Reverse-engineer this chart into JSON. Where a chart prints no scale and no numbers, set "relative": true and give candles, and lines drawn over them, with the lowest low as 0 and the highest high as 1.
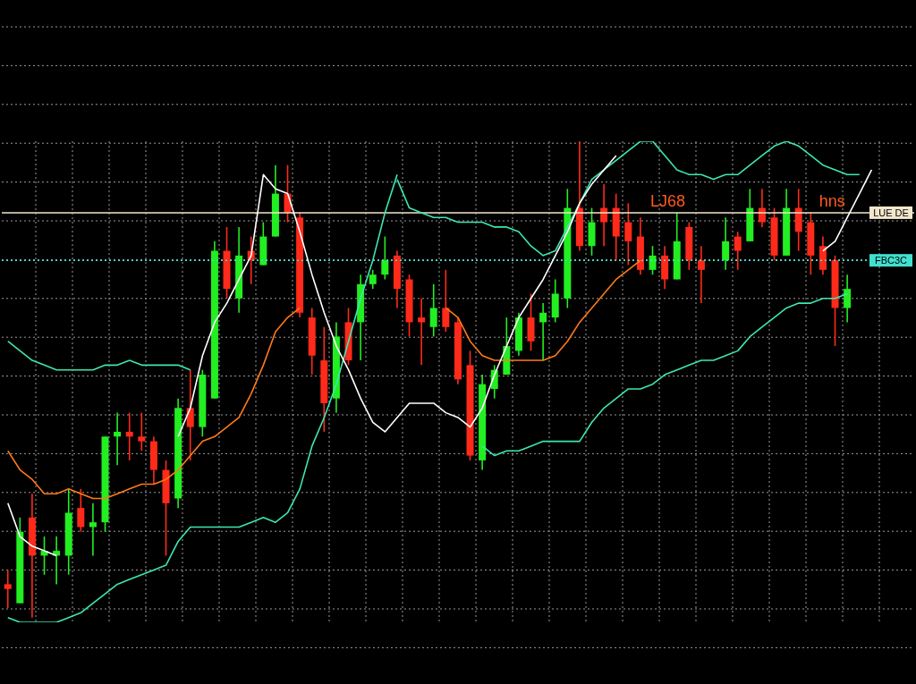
{
  "chart_data": {
    "type": "candlestick",
    "relative": true,
    "grid": true,
    "categories": [
      null,
      null,
      null,
      null,
      null,
      null,
      null,
      null,
      null,
      null,
      null,
      null,
      null,
      null,
      null,
      null,
      null,
      null,
      null,
      null,
      null,
      null,
      null,
      null,
      null,
      null,
      null,
      null,
      null,
      null,
      null,
      null,
      null,
      null,
      null,
      null,
      null,
      null,
      null,
      null,
      null,
      null,
      null,
      null,
      null,
      null,
      null,
      null,
      null,
      null,
      null,
      null,
      null,
      null,
      null,
      null,
      null,
      null,
      null,
      null,
      null,
      null,
      null,
      null,
      null,
      null,
      null,
      null,
      null,
      null,
      null,
      null,
      null,
      null,
      null
    ],
    "colors": [
      "#ff2a1a",
      "#22ee22",
      "#ff2a1a",
      "#22ee22",
      "#22ee22",
      "#22ee22",
      "#ff2a1a",
      "#22ee22",
      "#22ee22",
      "#22ee22",
      "#ff2a1a",
      "#ff2a1a",
      "#ff2a1a",
      "#ff2a1a",
      "#22ee22",
      "#ff2a1a",
      "#22ee22",
      "#22ee22",
      "#ff2a1a",
      "#22ee22",
      "#ff2a1a",
      "#22ee22",
      "#22ee22",
      "#ff2a1a",
      "#ff2a1a",
      "#ff2a1a",
      "#ff2a1a",
      "#22ee22",
      "#ff2a1a",
      "#22ee22",
      "#22ee22",
      "#22ee22",
      "#ff2a1a",
      "#ff2a1a",
      "#ff2a1a",
      "#22ee22",
      "#ff2a1a",
      "#ff2a1a",
      "#ff2a1a",
      "#22ee22",
      "#22ee22",
      "#22ee22",
      "#22ee22",
      "#ff2a1a",
      "#22ee22",
      "#22ee22",
      "#22ee22",
      "#ff2a1a",
      "#22ee22",
      "#ff2a1a",
      "#ff2a1a",
      "#ff2a1a",
      "#ff2a1a",
      "#22ee22",
      "#ff2a1a",
      "#22ee22",
      "#ff2a1a",
      "#ff2a1a",
      null,
      "#22ee22",
      "#ff2a1a",
      "#22ee22",
      "#ff2a1a",
      "#ff2a1a",
      "#22ee22",
      "#ff2a1a",
      "#ff2a1a",
      "#ff2a1a",
      "#ff2a1a",
      "#22ee22",
      null,
      null,
      null,
      null,
      null
    ],
    "ohlc": [
      [
        0.07,
        0.1,
        0.02,
        0.06
      ],
      [
        0.03,
        0.21,
        0.03,
        0.18
      ],
      [
        0.21,
        0.26,
        0,
        0.13
      ],
      [
        0.13,
        0.17,
        0.09,
        0.14
      ],
      [
        0.13,
        0.17,
        0.07,
        0.14
      ],
      [
        0.13,
        0.27,
        0.09,
        0.22
      ],
      [
        0.23,
        0.27,
        0.18,
        0.19
      ],
      [
        0.19,
        0.24,
        0.13,
        0.2
      ],
      [
        0.2,
        0.38,
        0.18,
        0.38
      ],
      [
        0.38,
        0.43,
        0.32,
        0.39
      ],
      [
        0.39,
        0.43,
        0.33,
        0.38
      ],
      [
        0.38,
        0.43,
        0.35,
        0.37
      ],
      [
        0.37,
        0.38,
        0.28,
        0.31
      ],
      [
        0.31,
        0.33,
        0.13,
        0.24
      ],
      [
        0.25,
        0.46,
        0.23,
        0.44
      ],
      [
        0.44,
        0.52,
        0.33,
        0.4
      ],
      [
        0.4,
        0.52,
        0.38,
        0.51
      ],
      [
        0.46,
        0.79,
        0.46,
        0.77
      ],
      [
        0.77,
        0.82,
        0.67,
        0.69
      ],
      [
        0.67,
        0.82,
        0.64,
        0.76
      ],
      [
        0.77,
        0.8,
        0.7,
        0.75
      ],
      [
        0.74,
        0.83,
        0.74,
        0.8
      ],
      [
        0.8,
        0.95,
        0.8,
        0.89
      ],
      [
        0.89,
        0.95,
        0.83,
        0.85
      ],
      [
        0.84,
        0.85,
        0.63,
        0.64
      ],
      [
        0.63,
        0.65,
        0.51,
        0.55
      ],
      [
        0.54,
        0.61,
        0.39,
        0.45
      ],
      [
        0.46,
        0.62,
        0.43,
        0.59
      ],
      [
        0.62,
        0.65,
        0.53,
        0.54
      ],
      [
        0.62,
        0.72,
        0.54,
        0.7
      ],
      [
        0.7,
        0.73,
        0.69,
        0.72
      ],
      [
        0.72,
        0.8,
        0.71,
        0.75
      ],
      [
        0.76,
        0.77,
        0.65,
        0.69
      ],
      [
        0.71,
        0.72,
        0.59,
        0.62
      ],
      [
        0.63,
        0.67,
        0.53,
        0.62
      ],
      [
        0.61,
        0.7,
        0.59,
        0.65
      ],
      [
        0.65,
        0.73,
        0.6,
        0.61
      ],
      [
        0.62,
        0.63,
        0.49,
        0.5
      ],
      [
        0.53,
        0.56,
        0.33,
        0.34
      ],
      [
        0.33,
        0.51,
        0.31,
        0.49
      ],
      [
        0.48,
        0.53,
        0.46,
        0.52
      ],
      [
        0.51,
        0.63,
        0.51,
        0.57
      ],
      [
        0.56,
        0.64,
        0.55,
        0.63
      ],
      [
        0.63,
        0.68,
        0.56,
        0.58
      ],
      [
        0.62,
        0.66,
        0.54,
        0.64
      ],
      [
        0.63,
        0.71,
        0.62,
        0.68
      ],
      [
        0.67,
        0.9,
        0.65,
        0.86
      ],
      [
        0.86,
        1,
        0.77,
        0.78
      ],
      [
        0.78,
        0.86,
        0.76,
        0.83
      ],
      [
        0.86,
        0.91,
        0.78,
        0.83
      ],
      [
        0.86,
        0.89,
        0.75,
        0.8
      ],
      [
        0.83,
        0.87,
        0.74,
        0.79
      ],
      [
        0.8,
        0.84,
        0.72,
        0.73
      ],
      [
        0.73,
        0.78,
        0.72,
        0.76
      ],
      [
        0.76,
        0.78,
        0.69,
        0.71
      ],
      [
        0.71,
        0.85,
        0.71,
        0.79
      ],
      [
        0.82,
        0.83,
        0.73,
        0.75
      ],
      [
        0.75,
        0.78,
        0.66,
        0.73
      ],
      null,
      [
        0.75,
        0.84,
        0.73,
        0.79
      ],
      [
        0.8,
        0.81,
        0.73,
        0.77
      ],
      [
        0.79,
        0.9,
        0.79,
        0.86
      ],
      [
        0.86,
        0.9,
        0.82,
        0.83
      ],
      [
        0.84,
        0.86,
        0.75,
        0.76
      ],
      [
        0.76,
        0.9,
        0.76,
        0.86
      ],
      [
        0.86,
        0.9,
        0.77,
        0.81
      ],
      [
        0.83,
        0.85,
        0.72,
        0.76
      ],
      [
        0.78,
        0.8,
        0.72,
        0.73
      ],
      [
        0.75,
        0.76,
        0.57,
        0.65
      ],
      [
        0.65,
        0.72,
        0.62,
        0.69
      ],
      null,
      null,
      null,
      null,
      null
    ],
    "series": [
      {
        "type": "line",
        "color": "#3ee6b4",
        "values": [
          0.58,
          0.56,
          0.54,
          0.53,
          0.52,
          0.52,
          0.52,
          0.52,
          0.53,
          0.53,
          0.54,
          0.53,
          0.53,
          0.53,
          0.53,
          0.52,
          null,
          null,
          null,
          null,
          null,
          null,
          null,
          null,
          null,
          null,
          null,
          null,
          null,
          null,
          null,
          null,
          0.92,
          0.86,
          0.85,
          0.84,
          0.84,
          0.83,
          0.83,
          0.83,
          0.82,
          0.82,
          0.81,
          0.78,
          0.76,
          0.77,
          0.82,
          0.87,
          0.92,
          0.94,
          0.96,
          0.98,
          1.0,
          1.0,
          0.97,
          0.94,
          0.93,
          0.93,
          0.92,
          0.93,
          0.93,
          0.95,
          0.97,
          0.99,
          1.0,
          0.99,
          0.97,
          0.95,
          0.94,
          0.93,
          0.93,
          null,
          null,
          null,
          null
        ]
      },
      {
        "type": "line",
        "color": "#ff7a1a",
        "values": [
          0.35,
          0.31,
          0.29,
          0.26,
          0.26,
          0.27,
          0.26,
          0.25,
          0.25,
          0.26,
          0.27,
          0.28,
          0.28,
          0.29,
          0.31,
          0.34,
          0.37,
          0.38,
          0.4,
          0.42,
          0.47,
          0.53,
          0.6,
          0.63,
          0.65,
          null,
          null,
          null,
          null,
          null,
          null,
          null,
          null,
          null,
          null,
          null,
          0.65,
          0.63,
          0.58,
          0.55,
          0.54,
          0.54,
          0.54,
          0.54,
          0.54,
          0.55,
          0.58,
          0.62,
          0.65,
          0.68,
          0.71,
          0.73,
          0.75,
          null,
          null,
          null,
          null,
          null,
          null,
          null,
          null,
          null,
          null,
          null,
          null,
          null,
          null,
          null,
          null,
          null,
          null,
          null,
          null,
          null,
          null
        ]
      },
      {
        "type": "line",
        "color": "#3ee6b4",
        "values": [
          0.0,
          -0.01,
          -0.01,
          -0.01,
          -0.01,
          0.0,
          0.01,
          0.03,
          0.05,
          0.07,
          0.08,
          0.09,
          0.1,
          0.11,
          0.16,
          0.19,
          0.19,
          0.19,
          0.19,
          0.19,
          0.2,
          0.21,
          0.2,
          0.22,
          0.27,
          0.36,
          0.42,
          0.49,
          0.58,
          0.67,
          0.75,
          0.85,
          0.93,
          null,
          null,
          null,
          null,
          null,
          null,
          0.36,
          0.34,
          0.35,
          0.35,
          0.36,
          0.37,
          0.37,
          0.37,
          0.37,
          0.41,
          0.44,
          0.46,
          0.48,
          0.48,
          0.49,
          0.51,
          0.52,
          0.53,
          0.54,
          0.54,
          0.55,
          0.56,
          0.59,
          0.61,
          0.63,
          0.65,
          0.66,
          0.66,
          0.67,
          0.67,
          0.68,
          null,
          null,
          null,
          null,
          null
        ]
      },
      {
        "type": "line",
        "color": "#ffffff",
        "values": [
          0.24,
          0.17,
          0.15,
          0.14,
          0.13,
          null,
          null,
          null,
          null,
          null,
          null,
          null,
          null,
          null,
          0.38,
          0.44,
          0.55,
          0.62,
          0.66,
          0.71,
          0.76,
          0.93,
          0.9,
          0.89,
          0.81,
          0.72,
          0.64,
          0.57,
          0.52,
          0.46,
          0.41,
          0.39,
          0.42,
          0.45,
          0.45,
          0.45,
          0.43,
          0.42,
          0.4,
          0.44,
          0.51,
          0.57,
          0.63,
          0.67,
          0.71,
          0.76,
          0.81,
          0.87,
          0.91,
          0.94,
          0.97,
          null,
          null,
          null,
          null,
          null,
          null,
          null,
          null,
          null,
          null,
          null,
          null,
          null,
          null,
          null,
          null,
          0.77,
          0.79,
          0.84,
          0.89,
          0.94,
          null,
          null,
          null
        ]
      }
    ],
    "ref_lines": [
      {
        "axis": "y",
        "value": 0.85,
        "label": "LUE DE",
        "color": "#f2e6cc",
        "line_style": "solid"
      },
      {
        "axis": "y",
        "value": 0.75,
        "label": "FBC3C",
        "color": "#40e0d0",
        "line_style": "dotted"
      }
    ],
    "annotations": [
      "LJ68",
      "hns"
    ]
  }
}
